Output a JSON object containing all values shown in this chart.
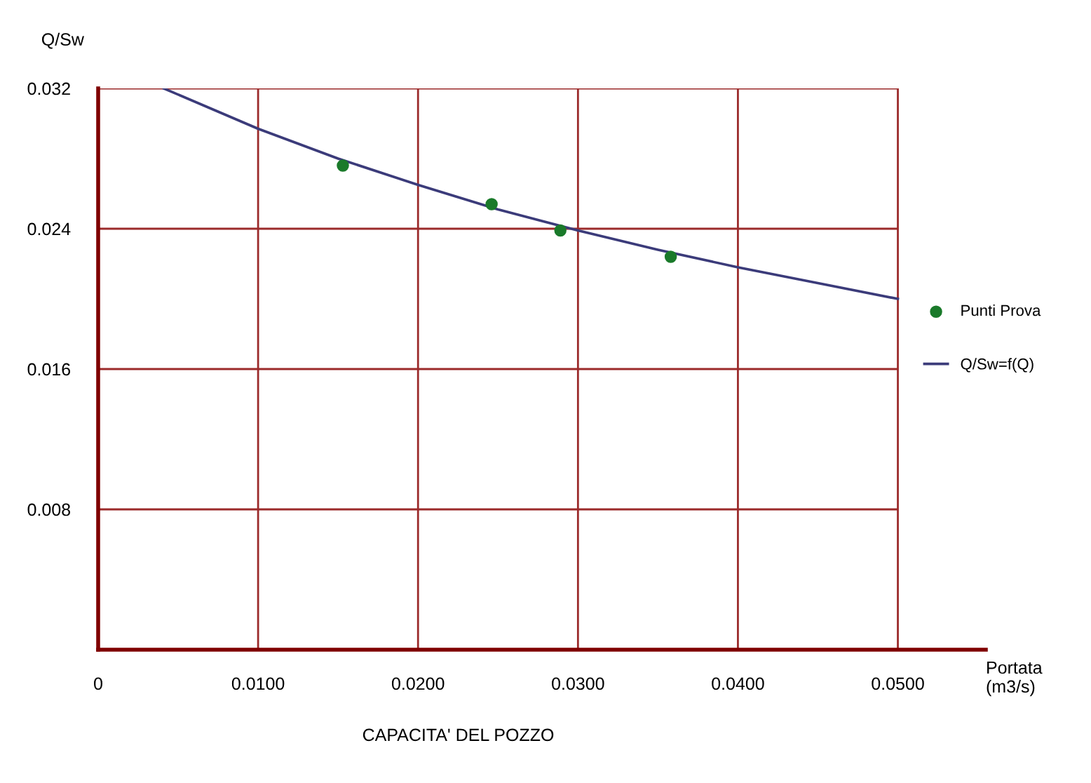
{
  "chart_data": {
    "type": "scatter",
    "title": "CAPACITA' DEL POZZO",
    "xlabel": "Portata\n(m3/s)",
    "ylabel": "Q/Sw",
    "xlim": [
      0,
      0.0555
    ],
    "ylim": [
      0,
      0.032
    ],
    "xticks": [
      {
        "value": 0,
        "label": "0"
      },
      {
        "value": 0.01,
        "label": "0.0100"
      },
      {
        "value": 0.02,
        "label": "0.0200"
      },
      {
        "value": 0.03,
        "label": "0.0300"
      },
      {
        "value": 0.04,
        "label": "0.0400"
      },
      {
        "value": 0.05,
        "label": "0.0500"
      }
    ],
    "yticks": [
      {
        "value": 0.008,
        "label": "0.008"
      },
      {
        "value": 0.016,
        "label": "0.016"
      },
      {
        "value": 0.024,
        "label": "0.024"
      },
      {
        "value": 0.032,
        "label": "0.032"
      }
    ],
    "grid": true,
    "legend": "right",
    "series": [
      {
        "name": "Punti Prova",
        "color": "#1a7a2a",
        "marker": "circle",
        "x": [
          0.0153,
          0.0246,
          0.0289,
          0.0358
        ],
        "values": [
          0.0276,
          0.0254,
          0.0239,
          0.0224
        ]
      },
      {
        "name": "Q/Sw=f(Q)",
        "type": "line",
        "color": "#3b3b7a",
        "marker": "none",
        "line_style": "solid",
        "x": [
          0.0041,
          0.01,
          0.015,
          0.02,
          0.025,
          0.03,
          0.035,
          0.04,
          0.045,
          0.05
        ],
        "values": [
          0.032,
          0.0297,
          0.028,
          0.0265,
          0.0251,
          0.0239,
          0.0228,
          0.0218,
          0.0209,
          0.02
        ]
      }
    ]
  }
}
